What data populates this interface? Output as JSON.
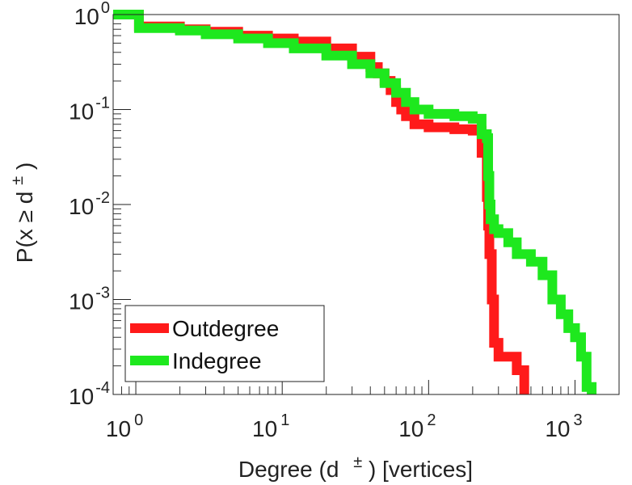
{
  "chart_data": {
    "type": "line",
    "x_scale": "log",
    "y_scale": "log",
    "xlim": [
      0.7,
      2000
    ],
    "ylim": [
      0.0001,
      1
    ],
    "x_ticks": [
      {
        "value": 1,
        "base": "10",
        "exp": "0"
      },
      {
        "value": 10,
        "base": "10",
        "exp": "1"
      },
      {
        "value": 100,
        "base": "10",
        "exp": "2"
      },
      {
        "value": 1000,
        "base": "10",
        "exp": "3"
      }
    ],
    "y_ticks": [
      {
        "value": 1,
        "base": "10",
        "exp": "0"
      },
      {
        "value": 0.1,
        "base": "10",
        "exp": "-1"
      },
      {
        "value": 0.01,
        "base": "10",
        "exp": "-2"
      },
      {
        "value": 0.001,
        "base": "10",
        "exp": "-3"
      },
      {
        "value": 0.0001,
        "base": "10",
        "exp": "-4"
      }
    ],
    "xlabel": {
      "prefix": "Degree (d",
      "sup": "±",
      "suffix": ") [vertices]"
    },
    "ylabel": {
      "prefix": "P(x ≥ d",
      "sup": "±",
      "suffix": ")"
    },
    "legend": {
      "position": "bottom-left"
    },
    "grid": false,
    "series": [
      {
        "name": "Outdegree",
        "color": "#ff1a1a",
        "x": [
          0.7,
          1,
          1.05,
          2,
          3,
          5,
          8,
          12,
          20,
          30,
          40,
          45,
          50,
          55,
          60,
          65,
          70,
          80,
          100,
          150,
          200,
          230,
          240,
          250,
          255,
          260,
          270,
          280,
          300,
          350,
          400,
          450
        ],
        "y": [
          1,
          1,
          0.75,
          0.7,
          0.66,
          0.6,
          0.56,
          0.52,
          0.44,
          0.36,
          0.28,
          0.24,
          0.2,
          0.16,
          0.12,
          0.1,
          0.085,
          0.07,
          0.065,
          0.062,
          0.06,
          0.035,
          0.035,
          0.012,
          0.006,
          0.003,
          0.001,
          0.00035,
          0.00025,
          0.00025,
          0.00018,
          0.0001
        ]
      },
      {
        "name": "Indegree",
        "color": "#1ee81e",
        "x": [
          0.7,
          1,
          1.05,
          2,
          3,
          5,
          8,
          12,
          20,
          30,
          40,
          50,
          60,
          70,
          80,
          100,
          150,
          200,
          230,
          240,
          250,
          255,
          260,
          265,
          280,
          300,
          350,
          400,
          500,
          600,
          700,
          800,
          900,
          1000,
          1100,
          1200,
          1300
        ],
        "y": [
          1,
          1,
          0.72,
          0.68,
          0.62,
          0.56,
          0.5,
          0.44,
          0.37,
          0.3,
          0.24,
          0.19,
          0.15,
          0.12,
          0.1,
          0.09,
          0.085,
          0.08,
          0.055,
          0.055,
          0.05,
          0.02,
          0.01,
          0.007,
          0.0055,
          0.005,
          0.004,
          0.003,
          0.0025,
          0.0018,
          0.001,
          0.0007,
          0.0005,
          0.0004,
          0.00025,
          0.00012,
          0.0001
        ]
      }
    ]
  }
}
